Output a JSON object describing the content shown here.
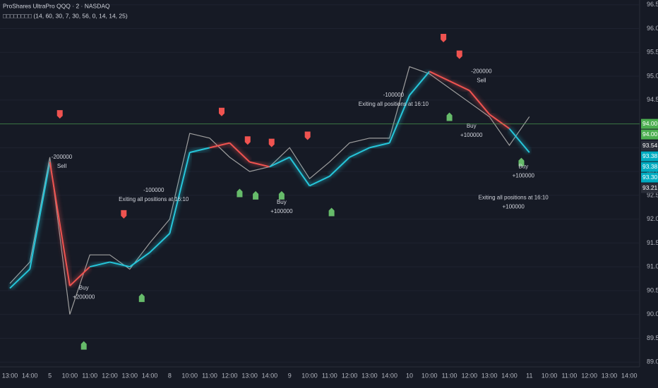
{
  "chart_data": {
    "type": "line",
    "title": "ProShares UltraPro QQQ · 2 · NASDAQ",
    "subtitle": "□□□□□□□□ (14, 60, 30, 7, 30, 56, 0, 14, 14, 25)",
    "categories": [
      "13:00",
      "14:00",
      "5",
      "10:00",
      "11:00",
      "12:00",
      "13:00",
      "14:00",
      "8",
      "10:00",
      "11:00",
      "12:00",
      "13:00",
      "14:00",
      "9",
      "10:00",
      "11:00",
      "12:00",
      "13:00",
      "14:00",
      "10",
      "10:00",
      "11:00",
      "12:00",
      "13:00",
      "14:00",
      "11",
      "10:00",
      "11:00",
      "12:00",
      "13:00",
      "14:00"
    ],
    "series": [
      {
        "name": "price",
        "color": "#9e9e9e",
        "values": [
          90.65,
          91.1,
          93.3,
          90.0,
          91.25,
          91.25,
          90.95,
          91.5,
          92.0,
          93.8,
          93.7,
          93.3,
          93.0,
          93.1,
          93.5,
          92.85,
          93.2,
          93.6,
          93.7,
          93.7,
          95.2,
          95.05,
          94.75,
          94.45,
          94.15,
          93.55,
          94.15,
          null,
          null,
          null,
          null,
          null
        ]
      },
      {
        "name": "trend",
        "color": "#26c6da",
        "color_above": "#ef5350",
        "values": [
          90.55,
          90.95,
          93.2,
          90.6,
          91.0,
          91.1,
          91.0,
          91.3,
          91.7,
          93.4,
          93.5,
          93.6,
          93.2,
          93.1,
          93.3,
          92.7,
          92.9,
          93.3,
          93.5,
          93.6,
          94.6,
          95.1,
          94.9,
          94.7,
          94.2,
          93.9,
          93.4,
          null,
          null,
          null,
          null,
          null
        ]
      }
    ],
    "ylim": [
      88.9,
      96.6
    ],
    "yticks": [
      {
        "value": 89.0,
        "label": "89.00"
      },
      {
        "value": 89.5,
        "label": "89.50"
      },
      {
        "value": 90.0,
        "label": "90.00"
      },
      {
        "value": 90.5,
        "label": "90.50"
      },
      {
        "value": 91.0,
        "label": "91.00"
      },
      {
        "value": 91.5,
        "label": "91.50"
      },
      {
        "value": 92.0,
        "label": "92.00"
      },
      {
        "value": 92.5,
        "label": "92.50"
      },
      {
        "value": 93.0,
        "label": "93.00"
      },
      {
        "value": 93.5,
        "label": "93.50"
      },
      {
        "value": 94.0,
        "label": "94.00"
      },
      {
        "value": 94.5,
        "label": "94.50"
      },
      {
        "value": 95.0,
        "label": "95.00"
      },
      {
        "value": 95.5,
        "label": "95.50"
      },
      {
        "value": 96.0,
        "label": "96.00"
      },
      {
        "value": 96.5,
        "label": "96.50"
      }
    ],
    "grid": true,
    "last_price": {
      "value": 94.0,
      "color": "#4caf50"
    },
    "price_labels": [
      {
        "value": 94.0,
        "label": "94.00",
        "color": "#4caf50"
      },
      {
        "value": 94.0,
        "label": "94.00",
        "color": "#4caf50"
      },
      {
        "value": 93.54,
        "label": "93.54",
        "color": "#2a2e39"
      },
      {
        "value": 93.38,
        "label": "93.38",
        "color": "#00acc1"
      },
      {
        "value": 93.38,
        "label": "93.38",
        "color": "#00acc1"
      },
      {
        "value": 93.3,
        "label": "93.30",
        "color": "#00acc1"
      },
      {
        "value": 93.21,
        "label": "93.21",
        "color": "#2a2e39"
      }
    ],
    "sell_signals": {
      "color": "#ef5350",
      "x": [
        2.5,
        5.7,
        10.6,
        11.9,
        13.1,
        14.9,
        21.7,
        22.5
      ],
      "y": [
        94.2,
        92.1,
        94.25,
        93.65,
        93.6,
        93.75,
        95.8,
        95.45
      ]
    },
    "buy_signals": {
      "color": "#66bb6a",
      "x": [
        3.7,
        6.6,
        11.5,
        12.3,
        13.6,
        16.1,
        22.0,
        25.6
      ],
      "y": [
        89.35,
        90.35,
        92.55,
        92.5,
        92.5,
        92.15,
        94.15,
        93.2
      ]
    },
    "annotations": [
      {
        "x": 2.6,
        "y": 93.3,
        "lines": [
          "-200000",
          "Sell"
        ]
      },
      {
        "x": 3.7,
        "y": 90.55,
        "lines": [
          "Buy",
          "+200000"
        ]
      },
      {
        "x": 7.2,
        "y": 92.6,
        "lines": [
          "-100000",
          "Exiting all positions at 16:10"
        ]
      },
      {
        "x": 13.6,
        "y": 92.35,
        "lines": [
          "Buy",
          "+100000"
        ]
      },
      {
        "x": 19.2,
        "y": 94.6,
        "lines": [
          "-100000",
          "Exiting all positions at 16:10"
        ]
      },
      {
        "x": 23.6,
        "y": 95.1,
        "lines": [
          "-200000",
          "Sell"
        ]
      },
      {
        "x": 23.1,
        "y": 93.95,
        "lines": [
          "Buy",
          "+100000"
        ]
      },
      {
        "x": 25.7,
        "y": 93.1,
        "lines": [
          "Buy",
          "+100000"
        ]
      },
      {
        "x": 25.2,
        "y": 92.45,
        "lines": [
          "Exiting all positions at 16:10",
          "+100000"
        ]
      }
    ]
  }
}
